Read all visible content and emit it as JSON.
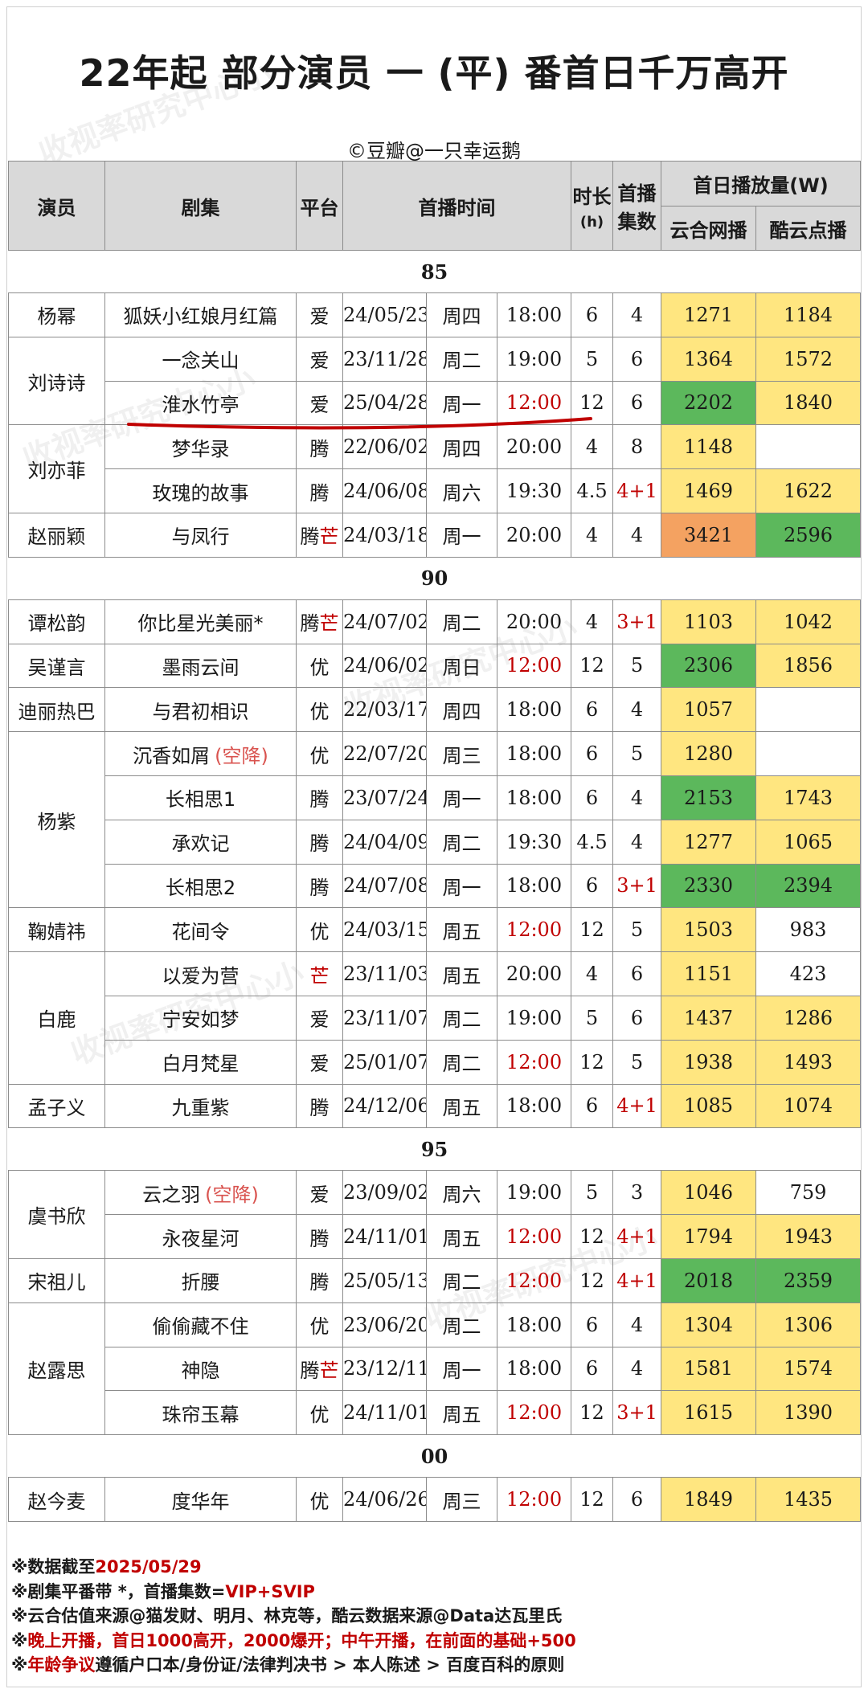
{
  "title": "22年起 部分演员 一 (平) 番首日千万高开",
  "credit": "©豆瓣@一只幸运鹅",
  "watermark": "收视率研究中心小",
  "headers": {
    "actor": "演员",
    "drama": "剧集",
    "platform": "平台",
    "premiere_time": "首播时间",
    "duration": "时长",
    "duration_unit": "(h)",
    "premiere_eps_1": "首播",
    "premiere_eps_2": "集数",
    "first_day": "首日播放量(W)",
    "yunhe": "云合网播",
    "kuyun": "酷云点播"
  },
  "groups": [
    {
      "label": "85",
      "rows": [
        {
          "actor": "杨幂",
          "span": 1,
          "drama": "狐妖小红娘月红篇",
          "platform": "爱",
          "date": "24/05/23",
          "weekday": "周四",
          "time": "18:00",
          "dur": "6",
          "eps": "4",
          "yunhe": "1271",
          "kuyun": "1184",
          "yc": "y",
          "kc": "y"
        },
        {
          "actor": "刘诗诗",
          "span": 2,
          "drama": "一念关山",
          "platform": "爱",
          "date": "23/11/28",
          "weekday": "周二",
          "time": "19:00",
          "dur": "5",
          "eps": "6",
          "yunhe": "1364",
          "kuyun": "1572",
          "yc": "y",
          "kc": "y"
        },
        {
          "actor": null,
          "drama": "淮水竹亭",
          "platform": "爱",
          "date": "25/04/28",
          "weekday": "周一",
          "time": "12:00",
          "timeRed": true,
          "dur": "12",
          "eps": "6",
          "yunhe": "2202",
          "kuyun": "1840",
          "yc": "g",
          "kc": "y"
        },
        {
          "actor": "刘亦菲",
          "span": 2,
          "drama": "梦华录",
          "platform": "腾",
          "date": "22/06/02",
          "weekday": "周四",
          "time": "20:00",
          "dur": "4",
          "eps": "8",
          "yunhe": "1148",
          "kuyun": "",
          "yc": "y",
          "kc": ""
        },
        {
          "actor": null,
          "drama": "玫瑰的故事",
          "platform": "腾",
          "date": "24/06/08",
          "weekday": "周六",
          "time": "19:30",
          "dur": "4.5",
          "eps": "4+1",
          "epsRed": true,
          "yunhe": "1469",
          "kuyun": "1622",
          "yc": "y",
          "kc": "y"
        },
        {
          "actor": "赵丽颖",
          "span": 1,
          "drama": "与凤行",
          "platform": "腾",
          "platform2": "芒",
          "date": "24/03/18",
          "weekday": "周一",
          "time": "20:00",
          "dur": "4",
          "eps": "4",
          "yunhe": "3421",
          "kuyun": "2596",
          "yc": "o",
          "kc": "g"
        }
      ]
    },
    {
      "label": "90",
      "rows": [
        {
          "actor": "谭松韵",
          "span": 1,
          "drama": "你比星光美丽*",
          "platform": "腾",
          "platform2": "芒",
          "date": "24/07/02",
          "weekday": "周二",
          "time": "20:00",
          "dur": "4",
          "eps": "3+1",
          "epsRed": true,
          "yunhe": "1103",
          "kuyun": "1042",
          "yc": "y",
          "kc": "y"
        },
        {
          "actor": "吴谨言",
          "span": 1,
          "drama": "墨雨云间",
          "platform": "优",
          "date": "24/06/02",
          "weekday": "周日",
          "time": "12:00",
          "timeRed": true,
          "dur": "12",
          "eps": "5",
          "yunhe": "2306",
          "kuyun": "1856",
          "yc": "g",
          "kc": "y"
        },
        {
          "actor": "迪丽热巴",
          "span": 1,
          "drama": "与君初相识",
          "platform": "优",
          "date": "22/03/17",
          "weekday": "周四",
          "time": "18:00",
          "dur": "6",
          "eps": "4",
          "yunhe": "1057",
          "kuyun": "",
          "yc": "y",
          "kc": ""
        },
        {
          "actor": "杨紫",
          "span": 4,
          "drama": "沉香如屑",
          "dramaNote": "(空降)",
          "platform": "优",
          "date": "22/07/20",
          "weekday": "周三",
          "time": "18:00",
          "dur": "6",
          "eps": "5",
          "yunhe": "1280",
          "kuyun": "",
          "yc": "y",
          "kc": ""
        },
        {
          "actor": null,
          "drama": "长相思1",
          "platform": "腾",
          "date": "23/07/24",
          "weekday": "周一",
          "time": "18:00",
          "dur": "6",
          "eps": "4",
          "yunhe": "2153",
          "kuyun": "1743",
          "yc": "g",
          "kc": "y"
        },
        {
          "actor": null,
          "drama": "承欢记",
          "platform": "腾",
          "date": "24/04/09",
          "weekday": "周二",
          "time": "19:30",
          "dur": "4.5",
          "eps": "4",
          "yunhe": "1277",
          "kuyun": "1065",
          "yc": "y",
          "kc": "y"
        },
        {
          "actor": null,
          "drama": "长相思2",
          "platform": "腾",
          "date": "24/07/08",
          "weekday": "周一",
          "time": "18:00",
          "dur": "6",
          "eps": "3+1",
          "epsRed": true,
          "yunhe": "2330",
          "kuyun": "2394",
          "yc": "g",
          "kc": "g"
        },
        {
          "actor": "鞠婧祎",
          "span": 1,
          "drama": "花间令",
          "platform": "优",
          "date": "24/03/15",
          "weekday": "周五",
          "time": "12:00",
          "timeRed": true,
          "dur": "12",
          "eps": "5",
          "yunhe": "1503",
          "kuyun": "983",
          "yc": "y",
          "kc": ""
        },
        {
          "actor": "白鹿",
          "span": 3,
          "drama": "以爱为营",
          "platform": "",
          "platform2": "芒",
          "date": "23/11/03",
          "weekday": "周五",
          "time": "20:00",
          "dur": "4",
          "eps": "6",
          "yunhe": "1151",
          "kuyun": "423",
          "yc": "y",
          "kc": ""
        },
        {
          "actor": null,
          "drama": "宁安如梦",
          "platform": "爱",
          "date": "23/11/07",
          "weekday": "周二",
          "time": "19:00",
          "dur": "5",
          "eps": "6",
          "yunhe": "1437",
          "kuyun": "1286",
          "yc": "y",
          "kc": "y"
        },
        {
          "actor": null,
          "drama": "白月梵星",
          "platform": "爱",
          "date": "25/01/07",
          "weekday": "周二",
          "time": "12:00",
          "timeRed": true,
          "dur": "12",
          "eps": "5",
          "yunhe": "1938",
          "kuyun": "1493",
          "yc": "y",
          "kc": "y"
        },
        {
          "actor": "孟子义",
          "span": 1,
          "drama": "九重紫",
          "platform": "腾",
          "date": "24/12/06",
          "weekday": "周五",
          "time": "18:00",
          "dur": "6",
          "eps": "4+1",
          "epsRed": true,
          "yunhe": "1085",
          "kuyun": "1074",
          "yc": "y",
          "kc": "y"
        }
      ]
    },
    {
      "label": "95",
      "rows": [
        {
          "actor": "虞书欣",
          "span": 2,
          "drama": "云之羽",
          "dramaNote": "(空降)",
          "platform": "爱",
          "date": "23/09/02",
          "weekday": "周六",
          "time": "19:00",
          "dur": "5",
          "eps": "3",
          "yunhe": "1046",
          "kuyun": "759",
          "yc": "y",
          "kc": ""
        },
        {
          "actor": null,
          "drama": "永夜星河",
          "platform": "腾",
          "date": "24/11/01",
          "weekday": "周五",
          "time": "12:00",
          "timeRed": true,
          "dur": "12",
          "eps": "4+1",
          "epsRed": true,
          "yunhe": "1794",
          "kuyun": "1943",
          "yc": "y",
          "kc": "y"
        },
        {
          "actor": "宋祖儿",
          "span": 1,
          "drama": "折腰",
          "platform": "腾",
          "date": "25/05/13",
          "weekday": "周二",
          "time": "12:00",
          "timeRed": true,
          "dur": "12",
          "eps": "4+1",
          "epsRed": true,
          "yunhe": "2018",
          "kuyun": "2359",
          "yc": "g",
          "kc": "g"
        },
        {
          "actor": "赵露思",
          "span": 3,
          "drama": "偷偷藏不住",
          "platform": "优",
          "date": "23/06/20",
          "weekday": "周二",
          "time": "18:00",
          "dur": "6",
          "eps": "4",
          "yunhe": "1304",
          "kuyun": "1306",
          "yc": "y",
          "kc": "y"
        },
        {
          "actor": null,
          "drama": "神隐",
          "platform": "腾",
          "platform2": "芒",
          "date": "23/12/11",
          "weekday": "周一",
          "time": "18:00",
          "dur": "6",
          "eps": "4",
          "yunhe": "1581",
          "kuyun": "1574",
          "yc": "y",
          "kc": "y"
        },
        {
          "actor": null,
          "drama": "珠帘玉幕",
          "platform": "优",
          "date": "24/11/01",
          "weekday": "周五",
          "time": "12:00",
          "timeRed": true,
          "dur": "12",
          "eps": "3+1",
          "epsRed": true,
          "yunhe": "1615",
          "kuyun": "1390",
          "yc": "y",
          "kc": "y"
        }
      ]
    },
    {
      "label": "00",
      "rows": [
        {
          "actor": "赵今麦",
          "span": 1,
          "drama": "度华年",
          "platform": "优",
          "date": "24/06/26",
          "weekday": "周三",
          "time": "12:00",
          "timeRed": true,
          "dur": "12",
          "eps": "6",
          "yunhe": "1849",
          "kuyun": "1435",
          "yc": "y",
          "kc": "y"
        }
      ]
    }
  ],
  "notes": [
    {
      "parts": [
        {
          "t": "※数据截至",
          "c": ""
        },
        {
          "t": "2025/05/29",
          "c": "red"
        }
      ]
    },
    {
      "parts": [
        {
          "t": "※剧集平番带 *，首播集数=",
          "c": ""
        },
        {
          "t": "VIP+SVIP",
          "c": "red"
        }
      ]
    },
    {
      "parts": [
        {
          "t": "※云合估值来源@猫发财、明月、林克等，酷云数据来源@Data达瓦里氏",
          "c": ""
        }
      ]
    },
    {
      "parts": [
        {
          "t": "※",
          "c": ""
        },
        {
          "t": "晚上开播，首日1000高开，2000爆开；中午开播，在前面的基础+500",
          "c": "red"
        }
      ]
    },
    {
      "parts": [
        {
          "t": "※",
          "c": ""
        },
        {
          "t": "年龄争议",
          "c": "red"
        },
        {
          "t": "遵循户口本/身份证/法律判决书 > 本人陈述 > 百度百科的原则",
          "c": ""
        }
      ]
    }
  ],
  "colors": {
    "yellow": "#ffe680",
    "green": "#5cb85c",
    "orange": "#f4a261",
    "red": "#c00000",
    "header_bg": "#d9d9d9",
    "underline": "#c00000"
  }
}
